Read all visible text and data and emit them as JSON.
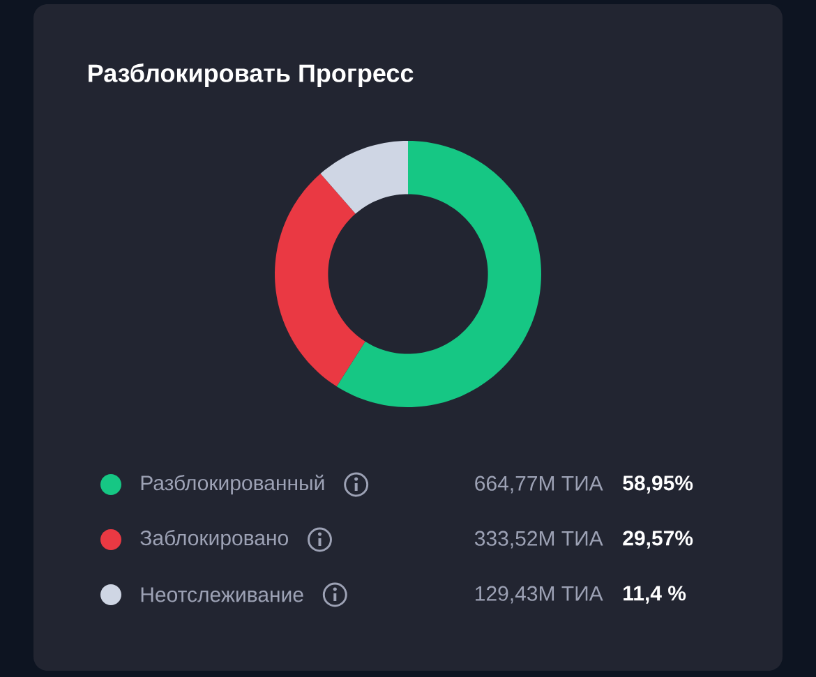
{
  "chart_data": {
    "type": "donut",
    "title": "Разблокировать Прогресс",
    "categories": [
      "Разблокированный",
      "Заблокировано",
      "Неотслеживание"
    ],
    "values": [
      58.95,
      29.57,
      11.4
    ],
    "colors": [
      "#16c784",
      "#ea3943",
      "#cfd6e4"
    ],
    "value_labels": [
      "58,95%",
      "29,57%",
      "11,4 %"
    ],
    "annotations": [
      "664,77M ТИА",
      "333,52M ТИА",
      "129,43M ТИА"
    ],
    "legend": "bottom"
  }
}
